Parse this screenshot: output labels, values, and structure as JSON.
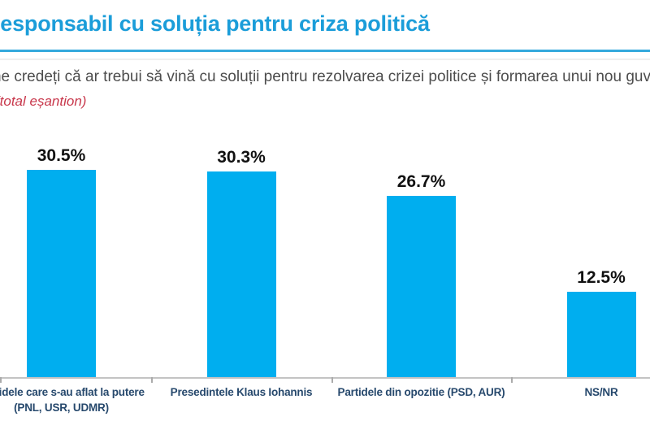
{
  "slide": {
    "title": "Responsabil cu soluția pentru criza politică",
    "subtitle": "Cine credeți că ar trebui să vină cu soluții pentru rezolvarea crizei politice și formarea unui nou guvern",
    "note": "(total eșantion)"
  },
  "chart_data": {
    "type": "bar",
    "title": "Responsabil cu soluția pentru criza politică",
    "subtitle_question": "Cine credeți că ar trebui să vină cu soluții pentru rezolvarea crizei politice și formarea unui nou guvern",
    "sample_note": "(total eșantion)",
    "categories": [
      "Partidele care s-au aflat la putere (PNL, USR, UDMR)",
      "Presedintele Klaus Iohannis",
      "Partidele din opozitie (PSD, AUR)",
      "NS/NR"
    ],
    "values": [
      30.5,
      30.3,
      26.7,
      12.5
    ],
    "value_labels": [
      "30.5%",
      "30.3%",
      "26.7%",
      "12.5%"
    ],
    "unit": "%",
    "ylim": [
      0,
      32
    ],
    "grid": false,
    "legend": false,
    "bar_color": "#00aeef"
  },
  "categories_display": [
    {
      "lines": [
        "Partidele care s-au aflat la putere",
        "(PNL, USR, UDMR)"
      ]
    },
    {
      "lines": [
        "Presedintele Klaus Iohannis"
      ]
    },
    {
      "lines": [
        "Partidele din opozitie (PSD, AUR)"
      ]
    },
    {
      "lines": [
        "NS/NR"
      ]
    }
  ],
  "colors": {
    "bar_fill": "#00aeef",
    "title_text": "#1b9dd9",
    "title_rule": "#35a9dc",
    "subtitle_text": "#4d4d4d",
    "note_text": "#c8374b",
    "category_label_text": "#27496d",
    "value_label_text": "#111111",
    "axis_line": "#c3c3c3"
  }
}
